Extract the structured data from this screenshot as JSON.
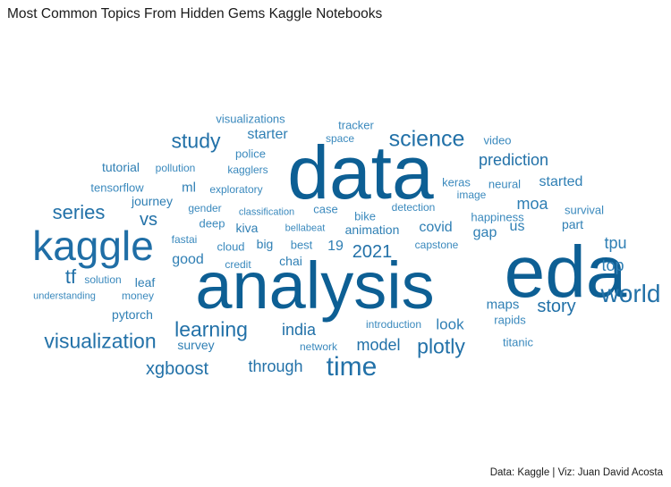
{
  "title": "Most Common Topics From Hidden Gems Kaggle Notebooks",
  "caption": "Data: Kaggle | Viz: Juan David Acosta",
  "colors": {
    "dark": "#0d5f94",
    "mid": "#2271a8",
    "light": "#3a89bd"
  },
  "words": [
    {
      "text": "analysis",
      "color": "#0d5f94"
    },
    {
      "text": "data",
      "color": "#0d5f94"
    },
    {
      "text": "eda",
      "color": "#0d5f94"
    },
    {
      "text": "kaggle",
      "color": "#1f6ea6"
    },
    {
      "text": "time",
      "color": "#2271a8"
    },
    {
      "text": "world",
      "color": "#2271a8"
    },
    {
      "text": "science",
      "color": "#2271a8"
    },
    {
      "text": "visualization",
      "color": "#2271a8"
    },
    {
      "text": "study",
      "color": "#2271a8"
    },
    {
      "text": "learning",
      "color": "#2271a8"
    },
    {
      "text": "plotly",
      "color": "#2271a8"
    },
    {
      "text": "series",
      "color": "#2271a8"
    },
    {
      "text": "xgboost",
      "color": "#2271a8"
    },
    {
      "text": "prediction",
      "color": "#2271a8"
    },
    {
      "text": "story",
      "color": "#2271a8"
    },
    {
      "text": "2021",
      "color": "#2271a8"
    },
    {
      "text": "india",
      "color": "#2271a8"
    },
    {
      "text": "model",
      "color": "#2271a8"
    },
    {
      "text": "through",
      "color": "#2271a8"
    },
    {
      "text": "tf",
      "color": "#2271a8"
    },
    {
      "text": "vs",
      "color": "#2271a8"
    },
    {
      "text": "tpu",
      "color": "#2f7fb4"
    },
    {
      "text": "top",
      "color": "#2f7fb4"
    },
    {
      "text": "moa",
      "color": "#2f7fb4"
    },
    {
      "text": "covid",
      "color": "#2f7fb4"
    },
    {
      "text": "look",
      "color": "#2f7fb4"
    },
    {
      "text": "gap",
      "color": "#2f7fb4"
    },
    {
      "text": "us",
      "color": "#2f7fb4"
    },
    {
      "text": "starter",
      "color": "#2f7fb4"
    },
    {
      "text": "started",
      "color": "#2f7fb4"
    },
    {
      "text": "maps",
      "color": "#2f7fb4"
    },
    {
      "text": "19",
      "color": "#2f7fb4"
    },
    {
      "text": "animation",
      "color": "#2f7fb4"
    },
    {
      "text": "survey",
      "color": "#2f7fb4"
    },
    {
      "text": "good",
      "color": "#2f7fb4"
    },
    {
      "text": "pytorch",
      "color": "#2f7fb4"
    },
    {
      "text": "journey",
      "color": "#2f7fb4"
    },
    {
      "text": "tutorial",
      "color": "#2f7fb4"
    },
    {
      "text": "ml",
      "color": "#2f7fb4"
    },
    {
      "text": "kiva",
      "color": "#2f7fb4"
    },
    {
      "text": "big",
      "color": "#2f7fb4"
    },
    {
      "text": "chai",
      "color": "#2f7fb4"
    },
    {
      "text": "leaf",
      "color": "#2f7fb4"
    },
    {
      "text": "part",
      "color": "#2f7fb4"
    },
    {
      "text": "visualizations",
      "color": "#3a89bd"
    },
    {
      "text": "tracker",
      "color": "#3a89bd"
    },
    {
      "text": "space",
      "color": "#3a89bd"
    },
    {
      "text": "police",
      "color": "#3a89bd"
    },
    {
      "text": "video",
      "color": "#3a89bd"
    },
    {
      "text": "pollution",
      "color": "#3a89bd"
    },
    {
      "text": "kagglers",
      "color": "#3a89bd"
    },
    {
      "text": "keras",
      "color": "#3a89bd"
    },
    {
      "text": "neural",
      "color": "#3a89bd"
    },
    {
      "text": "tensorflow",
      "color": "#3a89bd"
    },
    {
      "text": "exploratory",
      "color": "#3a89bd"
    },
    {
      "text": "image",
      "color": "#3a89bd"
    },
    {
      "text": "survival",
      "color": "#3a89bd"
    },
    {
      "text": "gender",
      "color": "#3a89bd"
    },
    {
      "text": "classification",
      "color": "#3a89bd"
    },
    {
      "text": "case",
      "color": "#3a89bd"
    },
    {
      "text": "detection",
      "color": "#3a89bd"
    },
    {
      "text": "deep",
      "color": "#3a89bd"
    },
    {
      "text": "bike",
      "color": "#3a89bd"
    },
    {
      "text": "happiness",
      "color": "#3a89bd"
    },
    {
      "text": "bellabeat",
      "color": "#3a89bd"
    },
    {
      "text": "fastai",
      "color": "#3a89bd"
    },
    {
      "text": "cloud",
      "color": "#3a89bd"
    },
    {
      "text": "best",
      "color": "#3a89bd"
    },
    {
      "text": "capstone",
      "color": "#3a89bd"
    },
    {
      "text": "credit",
      "color": "#3a89bd"
    },
    {
      "text": "solution",
      "color": "#3a89bd"
    },
    {
      "text": "money",
      "color": "#3a89bd"
    },
    {
      "text": "understanding",
      "color": "#3a89bd"
    },
    {
      "text": "rapids",
      "color": "#3a89bd"
    },
    {
      "text": "introduction",
      "color": "#3a89bd"
    },
    {
      "text": "network",
      "color": "#3a89bd"
    },
    {
      "text": "titanic",
      "color": "#3a89bd"
    }
  ]
}
